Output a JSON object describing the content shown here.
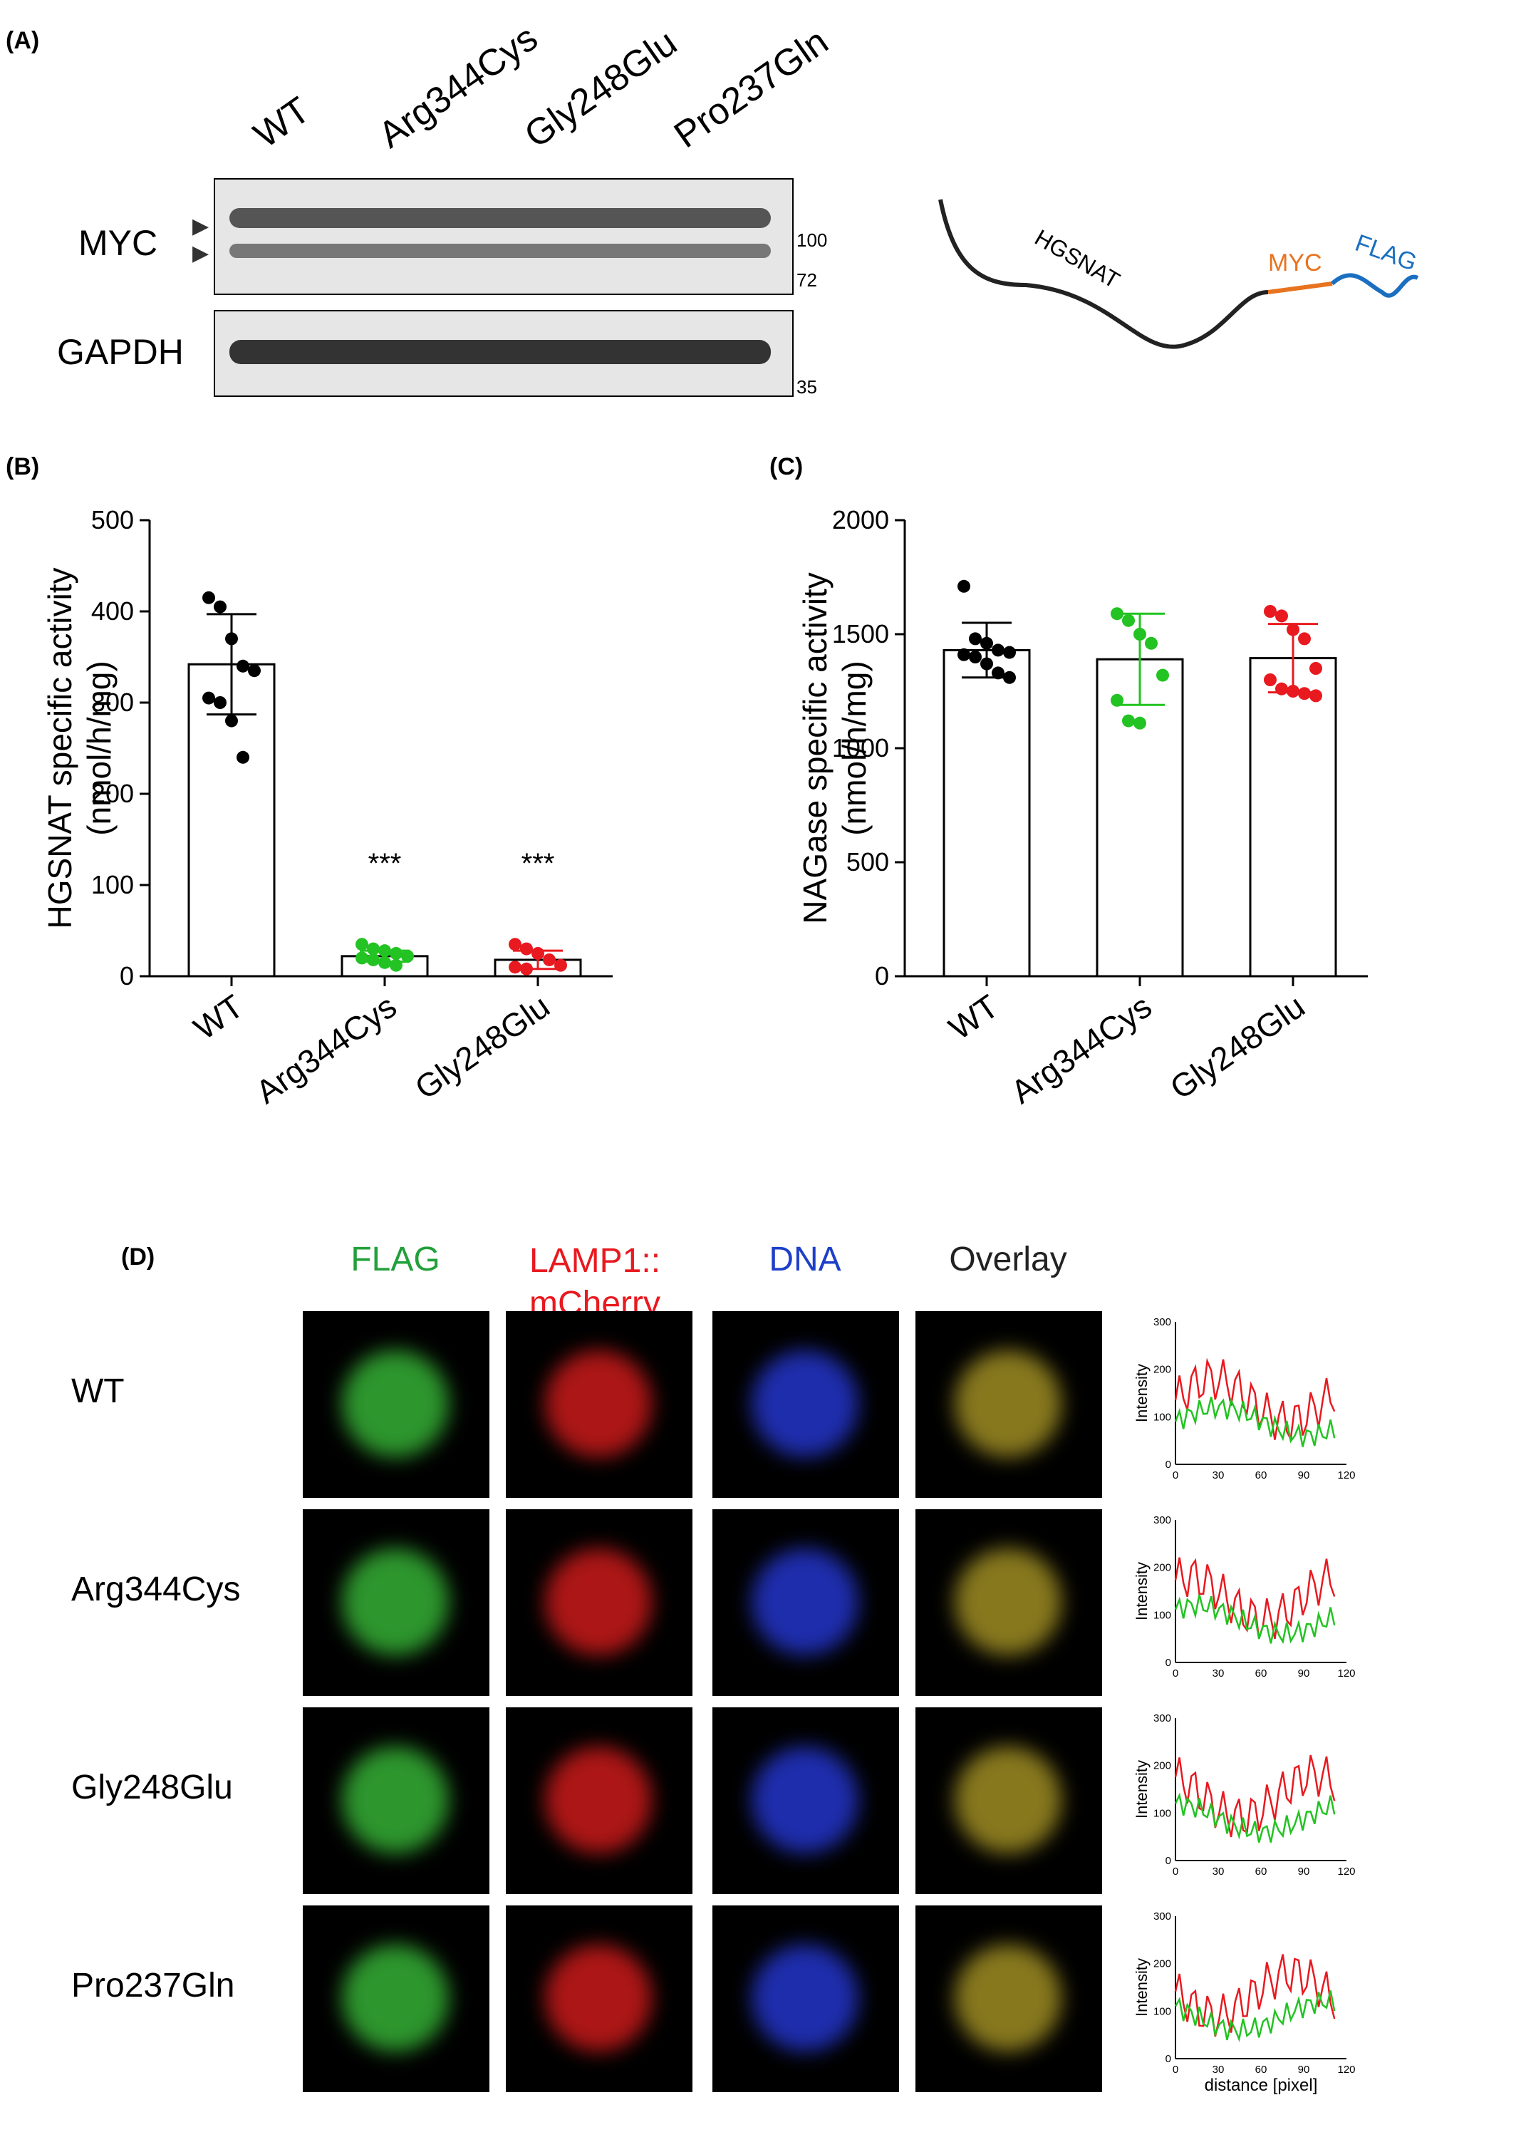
{
  "panelA": {
    "label": "(A)",
    "lanes": [
      "WT",
      "Arg344Cys",
      "Gly248Glu",
      "Pro237Gln"
    ],
    "rows": [
      "MYC",
      "GAPDH"
    ],
    "markers": [
      "100",
      "72",
      "35"
    ],
    "schematic": [
      "HGSNAT",
      "MYC",
      "FLAG"
    ]
  },
  "panelB": {
    "label": "(B)",
    "ylabel_line1": "HGSNAT specific activity",
    "ylabel_line2": "(nmol/h/mg)",
    "sig": [
      "***",
      "***"
    ]
  },
  "panelC": {
    "label": "(C)",
    "ylabel_line1": "NAGase specific activity",
    "ylabel_line2": "(nmol/h/mg)"
  },
  "panelD": {
    "label": "(D)",
    "columns": [
      "FLAG",
      "LAMP1::",
      "mCherry",
      "DNA",
      "Overlay"
    ],
    "conditions": [
      "WT",
      "Arg344Cys",
      "Gly248Glu",
      "Pro237Gln"
    ],
    "plot_ylabel": "Intensity",
    "plot_xlabel": "distance [pixel]"
  },
  "colors": {
    "green": "#22c322",
    "red": "#e8191f",
    "black": "#000000",
    "orange": "#e8731f",
    "blue": "#1b6fc0"
  },
  "chart_data": [
    {
      "type": "bar",
      "panel": "B",
      "categories": [
        "WT",
        "Arg344Cys",
        "Gly248Glu"
      ],
      "values": [
        342,
        22,
        18
      ],
      "errors": [
        55,
        6,
        10
      ],
      "points": [
        [
          415,
          405,
          370,
          340,
          335,
          305,
          300,
          280,
          240
        ],
        [
          35,
          30,
          28,
          25,
          22,
          20,
          18,
          15,
          12
        ],
        [
          35,
          30,
          25,
          18,
          12,
          10,
          8
        ]
      ],
      "point_colors": [
        "#000000",
        "#22c322",
        "#e8191f"
      ],
      "yticks": [
        0,
        100,
        200,
        300,
        400,
        500
      ],
      "ylim": [
        0,
        500
      ]
    },
    {
      "type": "bar",
      "panel": "C",
      "categories": [
        "WT",
        "Arg344Cys",
        "Gly248Glu"
      ],
      "values": [
        1430,
        1390,
        1395
      ],
      "errors": [
        120,
        200,
        150
      ],
      "points": [
        [
          1710,
          1480,
          1460,
          1430,
          1420,
          1410,
          1400,
          1370,
          1330,
          1310
        ],
        [
          1590,
          1560,
          1500,
          1460,
          1320,
          1210,
          1120,
          1110
        ],
        [
          1600,
          1580,
          1520,
          1480,
          1350,
          1300,
          1260,
          1250,
          1240,
          1230
        ]
      ],
      "point_colors": [
        "#000000",
        "#22c322",
        "#e8191f"
      ],
      "yticks": [
        0,
        500,
        1000,
        1500,
        2000
      ],
      "ylim": [
        0,
        2000
      ]
    }
  ]
}
